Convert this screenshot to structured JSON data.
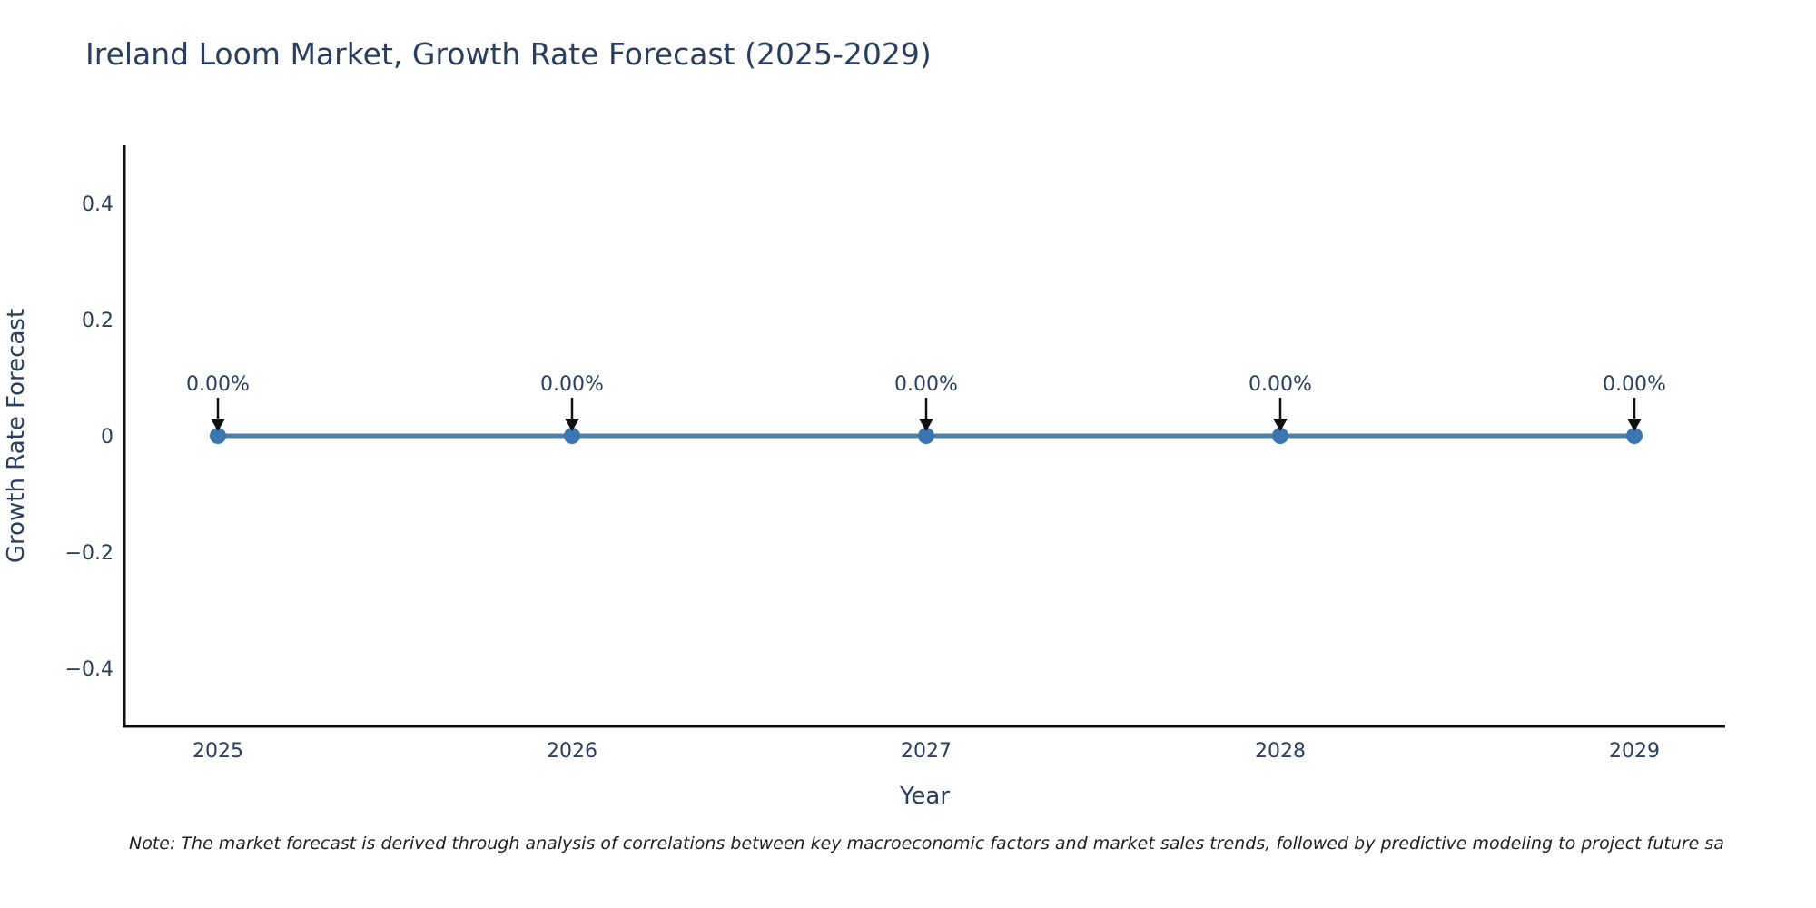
{
  "page": {
    "background": "#ffffff"
  },
  "chart_data": {
    "type": "line",
    "title": "Ireland Loom Market, Growth Rate Forecast (2025-2029)",
    "xlabel": "Year",
    "ylabel": "Growth Rate Forecast",
    "categories": [
      "2025",
      "2026",
      "2027",
      "2028",
      "2029"
    ],
    "values": [
      0,
      0,
      0,
      0,
      0
    ],
    "point_labels": [
      "0.00%",
      "0.00%",
      "0.00%",
      "0.00%",
      "0.00%"
    ],
    "ytick_values": [
      0.4,
      0.2,
      0,
      -0.2,
      -0.4
    ],
    "ytick_labels": [
      "0.4",
      "0.2",
      "0",
      "−0.2",
      "−0.4"
    ],
    "ylim": [
      -0.5,
      0.5
    ],
    "grid": false,
    "legend": false,
    "colors": {
      "line": "#4e80ab",
      "marker": "#3b76b0",
      "axis": "#111111",
      "arrow": "#111111",
      "text": "#2a3f5f",
      "background": "#ffffff"
    }
  },
  "footnote": {
    "text": "Note: The market forecast is derived through analysis of correlations between key macroeconomic factors and market sales trends, followed by predictive modeling to project future sa"
  }
}
